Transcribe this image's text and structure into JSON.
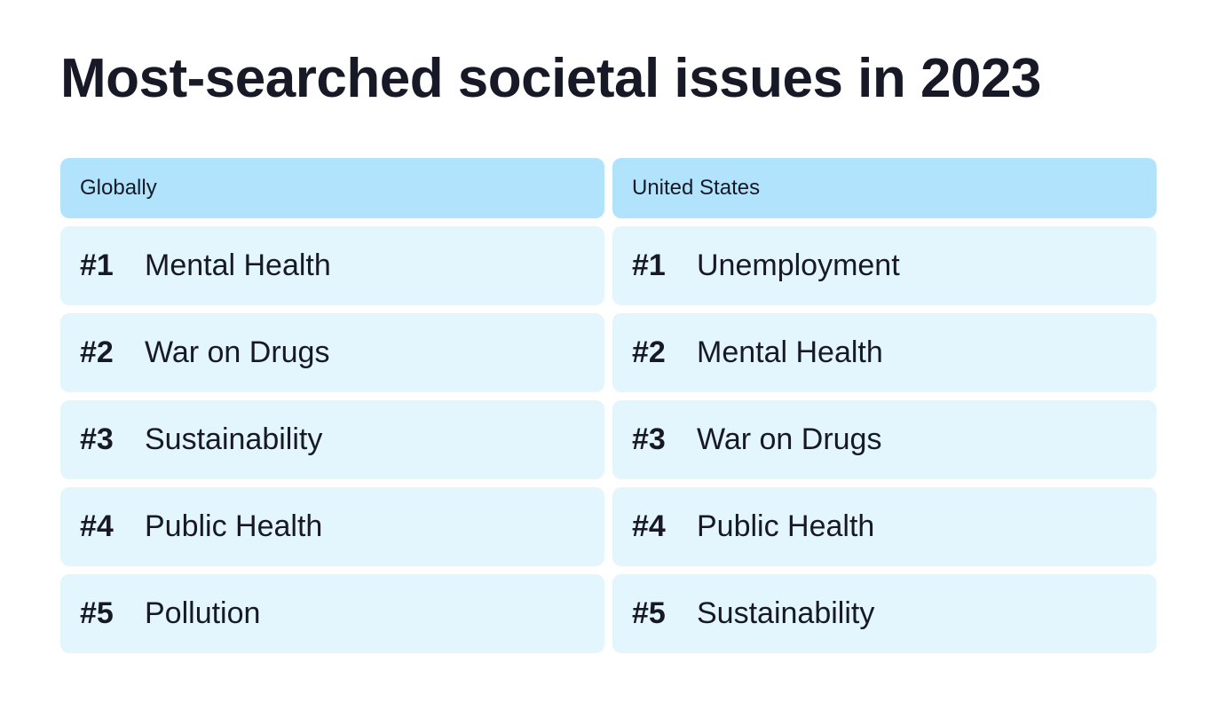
{
  "title": "Most-searched societal issues in 2023",
  "colors": {
    "header_bg": "#b1e3fc",
    "row_bg": "#e3f5fd",
    "text": "#171a26"
  },
  "chart_data": {
    "type": "table",
    "title": "Most-searched societal issues in 2023",
    "columns": [
      {
        "header": "Globally",
        "rows": [
          {
            "rank": "#1",
            "issue": "Mental Health"
          },
          {
            "rank": "#2",
            "issue": "War on Drugs"
          },
          {
            "rank": "#3",
            "issue": "Sustainability"
          },
          {
            "rank": "#4",
            "issue": "Public Health"
          },
          {
            "rank": "#5",
            "issue": "Pollution"
          }
        ]
      },
      {
        "header": "United States",
        "rows": [
          {
            "rank": "#1",
            "issue": "Unemployment"
          },
          {
            "rank": "#2",
            "issue": "Mental Health"
          },
          {
            "rank": "#3",
            "issue": "War on Drugs"
          },
          {
            "rank": "#4",
            "issue": "Public Health"
          },
          {
            "rank": "#5",
            "issue": "Sustainability"
          }
        ]
      }
    ]
  }
}
